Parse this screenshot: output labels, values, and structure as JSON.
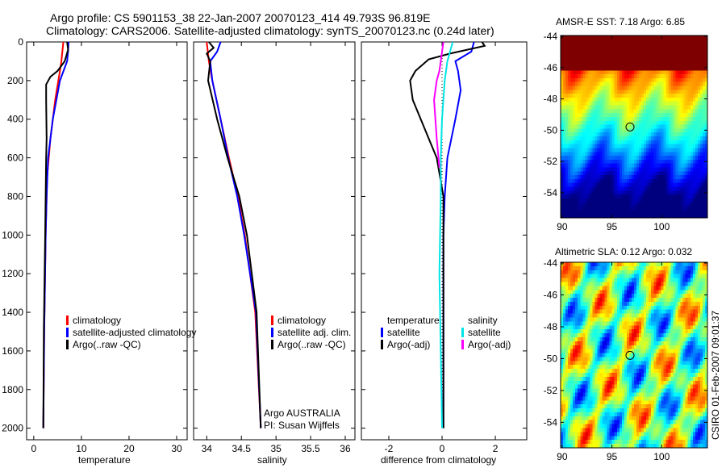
{
  "title_line1": "Argo profile: CS 5901153_38 22-Jan-2007 20070123_414 49.793S 96.819E",
  "title_line2": "Climatology: CARS2006. Satellite-adjusted climatology: synTS_20070123.nc (0.24d later)",
  "side_text": "CSIRO 01-Feb-2007 09:01:37",
  "chart_data": [
    {
      "type": "line",
      "name": "temperature",
      "xlabel": "temperature",
      "ylabel": "",
      "xlim": [
        -1.5,
        32.2
      ],
      "ylim": [
        0,
        2060
      ],
      "yreversed": true,
      "xticks": [
        0,
        10,
        20,
        30
      ],
      "yticks": [
        0,
        200,
        400,
        600,
        800,
        1000,
        1200,
        1400,
        1600,
        1800,
        2000
      ],
      "legend": [
        {
          "label": "climatology",
          "color": "#ff0000"
        },
        {
          "label": "satellite-adjusted climatology",
          "color": "#0000ff"
        },
        {
          "label": "Argo(..raw -QC)",
          "color": "#000000"
        }
      ],
      "series": [
        {
          "name": "climatology",
          "color": "#ff0000",
          "depth": [
            0,
            50,
            100,
            150,
            300,
            500,
            700,
            1000,
            1500,
            2000
          ],
          "values": [
            6.2,
            6.0,
            5.8,
            5.5,
            4.5,
            3.5,
            2.8,
            2.5,
            2.2,
            2.0
          ]
        },
        {
          "name": "satellite-adjusted climatology",
          "color": "#0000ff",
          "depth": [
            0,
            50,
            100,
            200,
            400,
            600,
            800,
            1000,
            1500,
            2000
          ],
          "values": [
            7.3,
            7.2,
            7.0,
            5.5,
            4.0,
            3.0,
            2.7,
            2.5,
            2.2,
            2.0
          ]
        },
        {
          "name": "Argo",
          "color": "#000000",
          "depth": [
            0,
            40,
            100,
            150,
            180,
            220,
            300,
            500,
            600,
            1000,
            1500,
            2000
          ],
          "values": [
            7.0,
            7.2,
            6.5,
            5.0,
            3.5,
            2.6,
            2.6,
            2.7,
            2.6,
            2.4,
            2.1,
            2.0
          ]
        }
      ]
    },
    {
      "type": "line",
      "name": "salinity",
      "xlabel": "salinity",
      "xlim": [
        33.81,
        36.14
      ],
      "ylim": [
        0,
        2060
      ],
      "yreversed": true,
      "xticks": [
        34,
        34.5,
        35,
        35.5,
        36
      ],
      "legend": [
        {
          "label": "climatology",
          "color": "#ff0000"
        },
        {
          "label": "satellite adj. clim.",
          "color": "#0000ff"
        },
        {
          "label": "Argo(..raw -QC)",
          "color": "#000000"
        }
      ],
      "annotation": [
        "Argo AUSTRALIA",
        "PI: Susan Wijffels"
      ],
      "series": [
        {
          "name": "climatology",
          "color": "#ff0000",
          "depth": [
            0,
            100,
            200,
            400,
            600,
            800,
            1000,
            1400,
            2000
          ],
          "values": [
            34.0,
            34.03,
            34.08,
            34.2,
            34.32,
            34.45,
            34.55,
            34.7,
            34.78
          ]
        },
        {
          "name": "satellite adj. clim.",
          "color": "#0000ff",
          "depth": [
            0,
            50,
            100,
            200,
            400,
            600,
            800,
            1000,
            1400,
            2000
          ],
          "values": [
            34.2,
            34.15,
            34.05,
            34.08,
            34.2,
            34.31,
            34.44,
            34.54,
            34.71,
            34.78
          ]
        },
        {
          "name": "Argo",
          "color": "#000000",
          "depth": [
            0,
            30,
            60,
            100,
            200,
            400,
            600,
            800,
            1000,
            1400,
            2000
          ],
          "values": [
            34.03,
            34.1,
            34.0,
            34.05,
            34.02,
            34.15,
            34.3,
            34.47,
            34.58,
            34.72,
            34.78
          ]
        }
      ]
    },
    {
      "type": "line",
      "name": "difference",
      "xlabel": "difference from climatology",
      "xlim": [
        -3.03,
        3.18
      ],
      "ylim": [
        0,
        2060
      ],
      "yreversed": true,
      "xticks": [
        -2,
        0,
        2
      ],
      "legend_temperature": {
        "title": "temperature",
        "items": [
          {
            "label": "satellite",
            "color": "#0000ff"
          },
          {
            "label": "Argo(-adj)",
            "color": "#000000"
          }
        ]
      },
      "legend_salinity": {
        "title": "salinity",
        "items": [
          {
            "label": "satellite",
            "color": "#00e5e5"
          },
          {
            "label": "Argo(-adj)",
            "color": "#ff00ff"
          }
        ]
      },
      "series": [
        {
          "name": "temp satellite",
          "color": "#0000ff",
          "depth": [
            0,
            50,
            100,
            150,
            250,
            400,
            600,
            800,
            1000,
            2000
          ],
          "values": [
            1.2,
            1.1,
            0.5,
            0.6,
            0.7,
            0.5,
            0.2,
            0.1,
            0.05,
            0.05
          ]
        },
        {
          "name": "temp Argo",
          "color": "#000000",
          "depth": [
            0,
            20,
            60,
            90,
            150,
            200,
            300,
            400,
            500,
            600,
            800,
            1000,
            2000
          ],
          "values": [
            1.5,
            1.6,
            0.3,
            -0.5,
            -1.0,
            -1.2,
            -1.1,
            -0.8,
            -0.5,
            -0.2,
            0.05,
            0.05,
            0.05
          ]
        },
        {
          "name": "sal satellite",
          "color": "#00e5e5",
          "depth": [
            0,
            50,
            100,
            200,
            400,
            600,
            800,
            1200,
            1600,
            2000
          ],
          "values": [
            0.4,
            0.3,
            0.2,
            0.1,
            0.0,
            -0.05,
            -0.05,
            -0.1,
            -0.05,
            0.0
          ]
        },
        {
          "name": "sal Argo",
          "color": "#ff00ff",
          "depth": [
            0,
            50,
            100,
            150,
            200,
            300,
            500,
            650
          ],
          "values": [
            0.05,
            0.0,
            -0.05,
            -0.1,
            -0.2,
            -0.3,
            -0.2,
            -0.1
          ]
        }
      ]
    },
    {
      "type": "heatmap",
      "name": "sst-map",
      "title": "AMSR-E SST: 7.18 Argo: 6.85",
      "xlim": [
        89.85,
        104.6
      ],
      "ylim": [
        -55.6,
        -43.95
      ],
      "xticks": [
        90,
        95,
        100
      ],
      "yticks": [
        -44,
        -46,
        -48,
        -50,
        -52,
        -54
      ],
      "marker": {
        "lon": 96.819,
        "lat": -49.793
      }
    },
    {
      "type": "heatmap",
      "name": "sla-map",
      "title": "Altimetric SLA: 0.12 Argo: 0.032",
      "xlim": [
        89.85,
        104.6
      ],
      "ylim": [
        -55.6,
        -43.95
      ],
      "xticks": [
        90,
        95,
        100
      ],
      "yticks": [
        -44,
        -46,
        -48,
        -50,
        -52,
        -54
      ],
      "marker": {
        "lon": 96.819,
        "lat": -49.793
      }
    }
  ]
}
